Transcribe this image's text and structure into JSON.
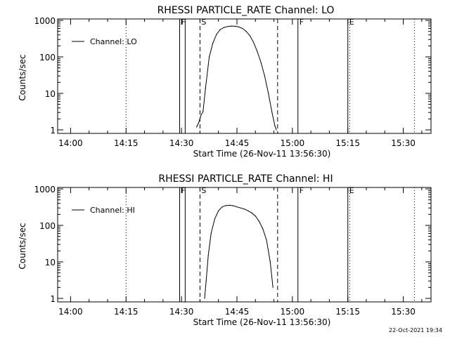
{
  "chart_data": [
    {
      "type": "line",
      "title": "RHESSI PARTICLE_RATE Channel: LO",
      "xlabel": "Start Time (26-Nov-11 13:56:30)",
      "ylabel": "Counts/sec",
      "yscale": "log",
      "ylim": [
        1,
        1000
      ],
      "xlim": [
        "13:56:30",
        "15:37:30"
      ],
      "ytick_labels": [
        "1",
        "10",
        "100",
        "1000"
      ],
      "xtick_labels": [
        "14:00",
        "14:15",
        "14:30",
        "14:45",
        "15:00",
        "15:15",
        "15:30"
      ],
      "legend": "top-left",
      "series": [
        {
          "name": "Channel: LO",
          "x": [
            "14:34:05",
            "14:34:40",
            "14:35:20",
            "14:35:50",
            "14:36:30",
            "14:37:30",
            "14:38:30",
            "14:39:30",
            "14:40:30",
            "14:41:30",
            "14:42:30",
            "14:43:30",
            "14:44:30",
            "14:45:30",
            "14:46:30",
            "14:47:30",
            "14:48:30",
            "14:49:30",
            "14:50:30",
            "14:51:30",
            "14:52:30",
            "14:53:30",
            "14:54:30",
            "14:55:15",
            "14:55:40"
          ],
          "y": [
            1.2,
            1.6,
            2.6,
            3.2,
            14,
            100,
            240,
            420,
            560,
            640,
            680,
            700,
            690,
            660,
            600,
            500,
            380,
            250,
            140,
            70,
            30,
            10,
            3,
            1.3,
            1
          ]
        }
      ],
      "markers": [
        {
          "label": "F",
          "time": "14:29:30",
          "style": "solid"
        },
        {
          "label": "",
          "time": "14:31:00",
          "style": "solid"
        },
        {
          "label": "S",
          "time": "14:35:00",
          "style": "dashed"
        },
        {
          "label": "",
          "time": "14:56:00",
          "style": "dashed"
        },
        {
          "label": "F",
          "time": "15:01:30",
          "style": "solid"
        },
        {
          "label": "E",
          "time": "15:15:00",
          "style": "solid"
        },
        {
          "label": "",
          "time": "14:15:00",
          "style": "dotted"
        },
        {
          "label": "",
          "time": "15:15:30",
          "style": "dotted"
        },
        {
          "label": "",
          "time": "15:33:00",
          "style": "dotted"
        }
      ]
    },
    {
      "type": "line",
      "title": "RHESSI PARTICLE_RATE Channel: HI",
      "xlabel": "Start Time (26-Nov-11 13:56:30)",
      "ylabel": "Counts/sec",
      "yscale": "log",
      "ylim": [
        1,
        1000
      ],
      "xlim": [
        "13:56:30",
        "15:37:30"
      ],
      "ytick_labels": [
        "1",
        "10",
        "100",
        "1000"
      ],
      "xtick_labels": [
        "14:00",
        "14:15",
        "14:30",
        "14:45",
        "15:00",
        "15:15",
        "15:30"
      ],
      "legend": "top-left",
      "series": [
        {
          "name": "Channel: HI",
          "x": [
            "14:36:15",
            "14:36:40",
            "14:37:15",
            "14:38:00",
            "14:39:00",
            "14:40:00",
            "14:41:00",
            "14:42:00",
            "14:43:00",
            "14:44:00",
            "14:45:00",
            "14:46:00",
            "14:47:00",
            "14:48:00",
            "14:49:00",
            "14:50:00",
            "14:51:00",
            "14:52:00",
            "14:53:00",
            "14:54:00",
            "14:54:45"
          ],
          "y": [
            1,
            3,
            15,
            60,
            150,
            250,
            320,
            350,
            355,
            345,
            320,
            300,
            280,
            250,
            220,
            180,
            130,
            80,
            40,
            10,
            2
          ]
        }
      ],
      "markers": [
        {
          "label": "F",
          "time": "14:29:30",
          "style": "solid"
        },
        {
          "label": "",
          "time": "14:31:00",
          "style": "solid"
        },
        {
          "label": "S",
          "time": "14:35:00",
          "style": "dashed"
        },
        {
          "label": "",
          "time": "14:56:00",
          "style": "dashed"
        },
        {
          "label": "F",
          "time": "15:01:30",
          "style": "solid"
        },
        {
          "label": "E",
          "time": "15:15:00",
          "style": "solid"
        },
        {
          "label": "",
          "time": "14:15:00",
          "style": "dotted"
        },
        {
          "label": "",
          "time": "15:15:30",
          "style": "dotted"
        },
        {
          "label": "",
          "time": "15:33:00",
          "style": "dotted"
        }
      ]
    }
  ],
  "footer": {
    "timestamp": "22-Oct-2021 19:34"
  }
}
